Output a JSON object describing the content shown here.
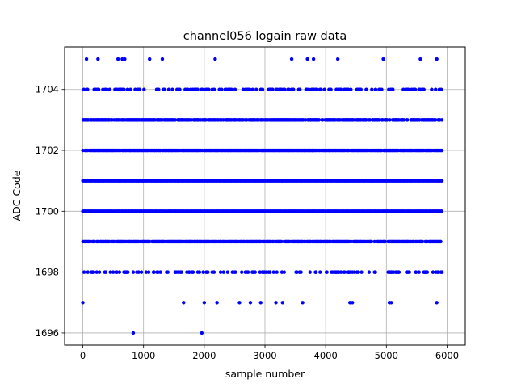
{
  "chart_data": {
    "type": "scatter",
    "title": "channel056 logain raw data",
    "xlabel": "sample number",
    "ylabel": "ADC Code",
    "xlim": [
      -300,
      6300
    ],
    "ylim": [
      1695.6,
      1705.4
    ],
    "xticks": [
      0,
      1000,
      2000,
      3000,
      4000,
      5000,
      6000
    ],
    "yticks": [
      1696,
      1698,
      1700,
      1702,
      1704
    ],
    "grid": true,
    "marker_color": "#0000ff",
    "n_samples": 6000,
    "dense_levels": [
      1698,
      1699,
      1700,
      1701,
      1702,
      1703,
      1704
    ],
    "points": {
      "y1705_x": [
        60,
        250,
        580,
        650,
        690,
        1100,
        1310,
        2180,
        3440,
        3700,
        3800,
        4200,
        4950,
        5560,
        5830
      ],
      "y1697_x": [
        0,
        1660,
        2000,
        2210,
        2580,
        2760,
        2930,
        3180,
        3290,
        3620,
        4400,
        4440,
        5050,
        5080,
        5830
      ],
      "y1696_x": [
        830,
        1960
      ]
    }
  }
}
